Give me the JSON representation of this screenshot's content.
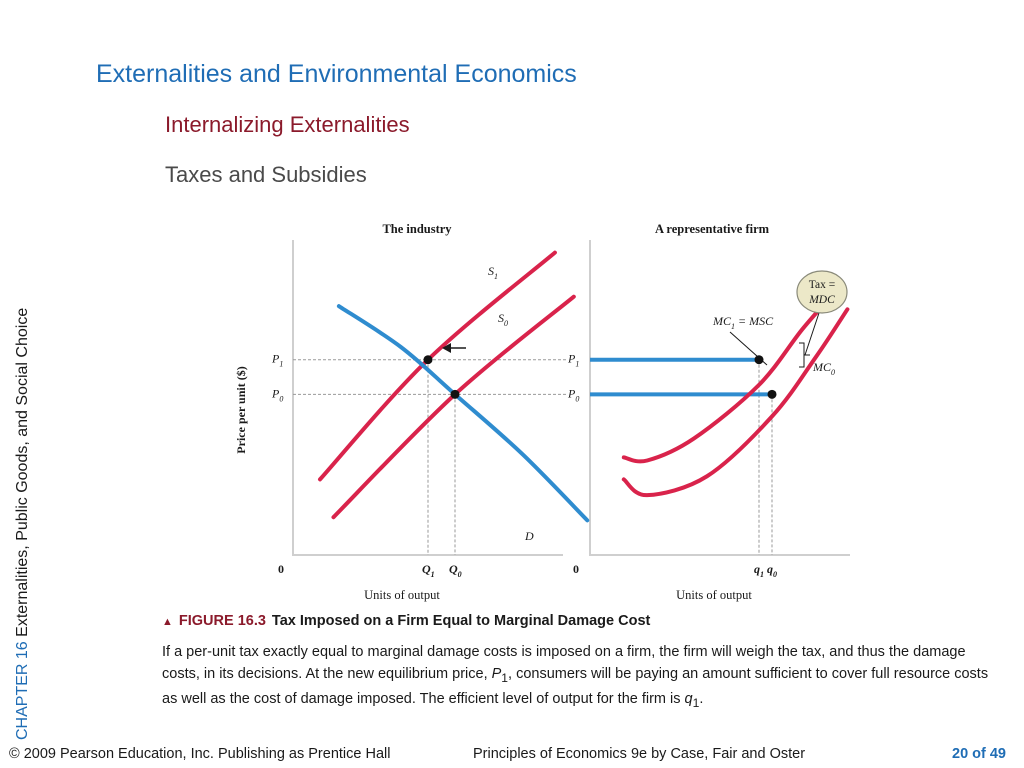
{
  "slide": {
    "title": "Externalities and Environmental Economics",
    "subtitle": "Internalizing Externalities",
    "subsubtitle": "Taxes and Subsidies",
    "sidebar_chapter": "CHAPTER 16",
    "sidebar_text": "Externalities, Public Goods, and Social Choice"
  },
  "caption": {
    "figure_no": "FIGURE 16.3",
    "figure_title": "Tax Imposed on a Firm Equal to Marginal Damage Cost"
  },
  "description": {
    "p1": "If a per-unit tax exactly equal to marginal damage costs is imposed on a firm, the firm will weigh the tax, and thus the damage costs, in its decisions. At the new equilibrium price, ",
    "P": "P",
    "p1_sub": "1",
    "p2": ", consumers will be paying an amount sufficient to cover full resource costs as well as the cost of damage imposed. The efficient level of output for the firm is ",
    "q": "q",
    "q_sub": "1",
    "p3": "."
  },
  "footer": {
    "copyright": "© 2009 Pearson Education, Inc. Publishing as Prentice Hall",
    "book": "Principles of Economics 9e by Case, Fair and Oster",
    "page": "20 of 49"
  },
  "colors": {
    "title": "#1f6db5",
    "subtitle": "#8b1a2b",
    "supply": "#d9234b",
    "demand": "#2f8ccf",
    "price_line": "#2f8ccf",
    "tax_bubble": "#ece8c8"
  },
  "chart_data": [
    {
      "type": "line",
      "title": "The industry",
      "xlabel": "Units of output",
      "ylabel": "Price per unit ($)",
      "origin_label": "0",
      "series": [
        {
          "name": "S",
          "sub": "1",
          "points": [
            [
              0.1,
              0.24
            ],
            [
              0.5,
              0.62
            ],
            [
              0.97,
              0.96
            ]
          ]
        },
        {
          "name": "S",
          "sub": "0",
          "points": [
            [
              0.15,
              0.12
            ],
            [
              0.6,
              0.51
            ],
            [
              1.04,
              0.82
            ]
          ]
        },
        {
          "name": "D",
          "sub": "",
          "points": [
            [
              0.17,
              0.79
            ],
            [
              0.4,
              0.66
            ],
            [
              0.6,
              0.51
            ],
            [
              0.85,
              0.32
            ],
            [
              1.09,
              0.11
            ]
          ]
        }
      ],
      "equilibria": [
        {
          "price": "P",
          "price_sub": "1",
          "qty": "Q",
          "qty_sub": "1",
          "x": 0.5,
          "y": 0.62
        },
        {
          "price": "P",
          "price_sub": "0",
          "qty": "Q",
          "qty_sub": "0",
          "x": 0.6,
          "y": 0.51
        }
      ],
      "shift_arrow": "left"
    },
    {
      "type": "line",
      "title": "A representative firm",
      "xlabel": "Units of output",
      "origin_label": "0",
      "tax_label": [
        "Tax =",
        "MDC"
      ],
      "series": [
        {
          "name": "MC",
          "sub": "1",
          "suffix": " = MSC",
          "points": [
            [
              0.13,
              0.31
            ],
            [
              0.22,
              0.3
            ],
            [
              0.4,
              0.37
            ],
            [
              0.65,
              0.54
            ],
            [
              0.82,
              0.72
            ],
            [
              0.97,
              0.86
            ]
          ]
        },
        {
          "name": "MC",
          "sub": "0",
          "suffix": "",
          "points": [
            [
              0.13,
              0.24
            ],
            [
              0.22,
              0.19
            ],
            [
              0.45,
              0.25
            ],
            [
              0.7,
              0.44
            ],
            [
              0.87,
              0.63
            ],
            [
              0.99,
              0.78
            ]
          ]
        }
      ],
      "price_lines": [
        {
          "label": "P",
          "sub": "1",
          "y": 0.62,
          "x_end": 0.65
        },
        {
          "label": "P",
          "sub": "0",
          "y": 0.51,
          "x_end": 0.7
        }
      ],
      "quantities": [
        {
          "label": "q",
          "sub": "1",
          "x": 0.65
        },
        {
          "label": "q",
          "sub": "0",
          "x": 0.7
        }
      ]
    }
  ]
}
